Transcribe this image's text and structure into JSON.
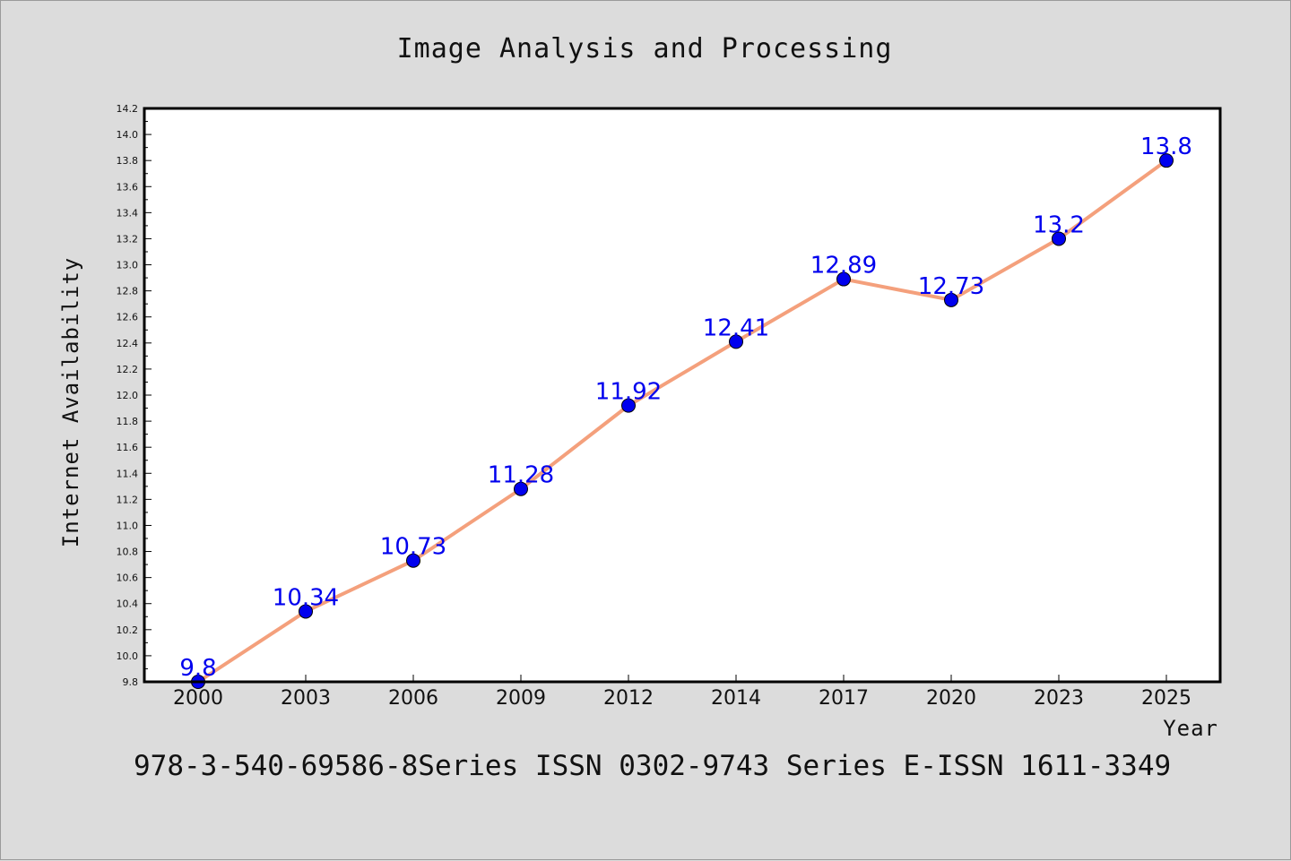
{
  "chart_data": {
    "type": "line",
    "title": "Image Analysis and Processing",
    "xlabel": "Year",
    "ylabel": "Internet Availability",
    "categories": [
      "2000",
      "2003",
      "2006",
      "2009",
      "2012",
      "2014",
      "2017",
      "2020",
      "2023",
      "2025"
    ],
    "series": [
      {
        "values": [
          9.8,
          10.34,
          10.73,
          11.28,
          11.92,
          12.41,
          12.89,
          12.73,
          13.2,
          13.8
        ],
        "line_color": "#f4a07c",
        "marker_color": "#0000ee"
      }
    ],
    "data_labels": [
      "9.8",
      "10.34",
      "10.73",
      "11.28",
      "11.92",
      "12.41",
      "12.89",
      "12.73",
      "13.2",
      "13.8"
    ],
    "ylim": [
      9.8,
      14.2
    ],
    "yticks": [
      "9.8",
      "10.0",
      "10.2",
      "10.4",
      "10.6",
      "10.8",
      "11.0",
      "11.2",
      "11.4",
      "11.6",
      "11.8",
      "12.0",
      "12.2",
      "12.4",
      "12.6",
      "12.8",
      "13.0",
      "13.2",
      "13.4",
      "13.6",
      "13.8",
      "14.0",
      "14.2"
    ],
    "grid": false,
    "legend": "none",
    "footer": "978-3-540-69586-8Series ISSN 0302-9743 Series E-ISSN 1611-3349"
  }
}
